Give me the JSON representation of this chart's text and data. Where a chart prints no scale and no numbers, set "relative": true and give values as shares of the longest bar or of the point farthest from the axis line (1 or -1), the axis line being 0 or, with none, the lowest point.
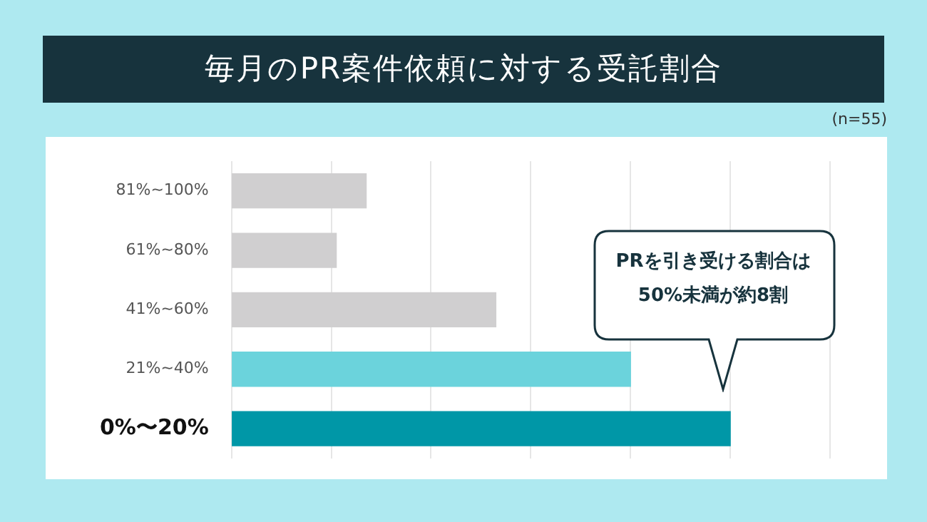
{
  "chart_data": {
    "type": "bar",
    "orientation": "horizontal",
    "relative": true,
    "title": "毎月のPR案件依頼に対する受託割合",
    "categories": [
      "81%~100%",
      "61%~80%",
      "41%~60%",
      "21%~40%",
      "0%〜20%"
    ],
    "values": [
      0.27,
      0.21,
      0.53,
      0.8,
      1
    ],
    "colors": [
      "#d0cfd0",
      "#d0cfd0",
      "#d0cfd0",
      "#6bd3dc",
      "#0097a7"
    ],
    "annotations": [
      "(n=55)",
      "PRを引き受ける割合は\n50%未満が約8割"
    ],
    "grid": "x",
    "legend": false
  }
}
